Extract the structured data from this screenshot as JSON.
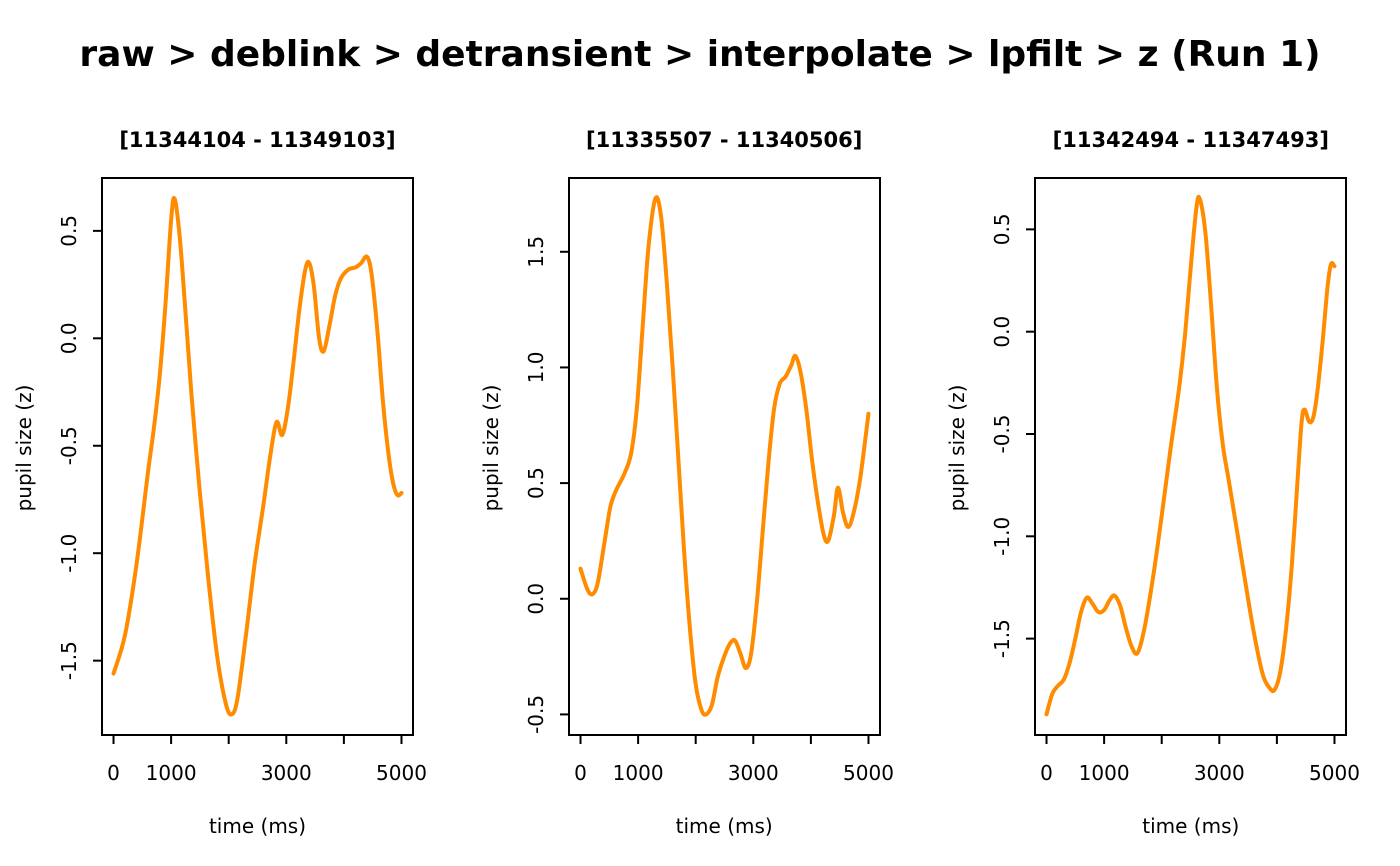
{
  "figure": {
    "title": "raw > deblink > detransient > interpolate > lpfilt > z (Run 1)",
    "background": "#ffffff"
  },
  "style": {
    "line_color": "#ff8c00",
    "axis_color": "#000000",
    "text_color": "#000000",
    "line_width": 4
  },
  "chart_data": [
    {
      "type": "line",
      "title": "[11344104 - 11349103]",
      "xlabel": "time (ms)",
      "ylabel": "pupil size (z)",
      "xlim": [
        -200,
        5200
      ],
      "ylim": [
        -1.846,
        0.746
      ],
      "xticks": [
        0,
        1000,
        2000,
        3000,
        4000,
        5000
      ],
      "xtick_labels": [
        "0",
        "1000",
        "",
        "3000",
        "",
        "5000"
      ],
      "yticks": [
        0.5,
        0.0,
        -0.5,
        -1.0,
        -1.5
      ],
      "ytick_labels": [
        "0.5",
        "0.0",
        "-0.5",
        "-1.0",
        "-1.5"
      ],
      "grid": false,
      "legend": null,
      "series": [
        {
          "name": "pupil size (z)",
          "points": [
            [
              0,
              -1.56
            ],
            [
              200,
              -1.38
            ],
            [
              400,
              -1.05
            ],
            [
              600,
              -0.62
            ],
            [
              700,
              -0.42
            ],
            [
              800,
              -0.18
            ],
            [
              900,
              0.15
            ],
            [
              1000,
              0.55
            ],
            [
              1060,
              0.65
            ],
            [
              1150,
              0.47
            ],
            [
              1250,
              0.12
            ],
            [
              1350,
              -0.25
            ],
            [
              1500,
              -0.72
            ],
            [
              1650,
              -1.13
            ],
            [
              1800,
              -1.48
            ],
            [
              1950,
              -1.7
            ],
            [
              2050,
              -1.75
            ],
            [
              2150,
              -1.68
            ],
            [
              2300,
              -1.38
            ],
            [
              2450,
              -1.05
            ],
            [
              2600,
              -0.78
            ],
            [
              2720,
              -0.55
            ],
            [
              2830,
              -0.39
            ],
            [
              2930,
              -0.45
            ],
            [
              3030,
              -0.32
            ],
            [
              3130,
              -0.1
            ],
            [
              3230,
              0.14
            ],
            [
              3330,
              0.32
            ],
            [
              3400,
              0.35
            ],
            [
              3480,
              0.24
            ],
            [
              3570,
              0.0
            ],
            [
              3650,
              -0.06
            ],
            [
              3750,
              0.06
            ],
            [
              3850,
              0.2
            ],
            [
              3950,
              0.28
            ],
            [
              4080,
              0.32
            ],
            [
              4200,
              0.33
            ],
            [
              4300,
              0.35
            ],
            [
              4400,
              0.38
            ],
            [
              4480,
              0.3
            ],
            [
              4580,
              0.04
            ],
            [
              4680,
              -0.3
            ],
            [
              4780,
              -0.55
            ],
            [
              4860,
              -0.68
            ],
            [
              4930,
              -0.73
            ],
            [
              5000,
              -0.72
            ]
          ]
        }
      ]
    },
    {
      "type": "line",
      "title": "[11335507 - 11340506]",
      "xlabel": "time (ms)",
      "ylabel": "pupil size (z)",
      "xlim": [
        -200,
        5200
      ],
      "ylim": [
        -0.589,
        1.819
      ],
      "xticks": [
        0,
        1000,
        2000,
        3000,
        4000,
        5000
      ],
      "xtick_labels": [
        "0",
        "1000",
        "",
        "3000",
        "",
        "5000"
      ],
      "yticks": [
        1.5,
        1.0,
        0.5,
        0.0,
        -0.5
      ],
      "ytick_labels": [
        "1.5",
        "1.0",
        "0.5",
        "0.0",
        "-0.5"
      ],
      "grid": false,
      "legend": null,
      "series": [
        {
          "name": "pupil size (z)",
          "points": [
            [
              0,
              0.13
            ],
            [
              120,
              0.04
            ],
            [
              210,
              0.02
            ],
            [
              300,
              0.07
            ],
            [
              420,
              0.25
            ],
            [
              520,
              0.4
            ],
            [
              620,
              0.47
            ],
            [
              760,
              0.54
            ],
            [
              880,
              0.63
            ],
            [
              980,
              0.83
            ],
            [
              1080,
              1.18
            ],
            [
              1180,
              1.52
            ],
            [
              1300,
              1.73
            ],
            [
              1400,
              1.65
            ],
            [
              1500,
              1.36
            ],
            [
              1600,
              1.0
            ],
            [
              1700,
              0.6
            ],
            [
              1800,
              0.2
            ],
            [
              1900,
              -0.13
            ],
            [
              2000,
              -0.37
            ],
            [
              2100,
              -0.48
            ],
            [
              2180,
              -0.5
            ],
            [
              2280,
              -0.46
            ],
            [
              2380,
              -0.34
            ],
            [
              2480,
              -0.26
            ],
            [
              2580,
              -0.2
            ],
            [
              2680,
              -0.18
            ],
            [
              2780,
              -0.24
            ],
            [
              2870,
              -0.3
            ],
            [
              2960,
              -0.24
            ],
            [
              3060,
              -0.02
            ],
            [
              3160,
              0.28
            ],
            [
              3260,
              0.58
            ],
            [
              3360,
              0.82
            ],
            [
              3460,
              0.93
            ],
            [
              3560,
              0.96
            ],
            [
              3660,
              1.01
            ],
            [
              3730,
              1.05
            ],
            [
              3820,
              0.98
            ],
            [
              3920,
              0.82
            ],
            [
              4020,
              0.6
            ],
            [
              4120,
              0.42
            ],
            [
              4220,
              0.28
            ],
            [
              4300,
              0.25
            ],
            [
              4400,
              0.36
            ],
            [
              4470,
              0.48
            ],
            [
              4560,
              0.37
            ],
            [
              4650,
              0.31
            ],
            [
              4750,
              0.38
            ],
            [
              4850,
              0.51
            ],
            [
              4930,
              0.66
            ],
            [
              5000,
              0.8
            ]
          ]
        }
      ]
    },
    {
      "type": "line",
      "title": "[11342494 - 11347493]",
      "xlabel": "time (ms)",
      "ylabel": "pupil size (z)",
      "xlim": [
        -200,
        5200
      ],
      "ylim": [
        -1.971,
        0.751
      ],
      "xticks": [
        0,
        1000,
        2000,
        3000,
        4000,
        5000
      ],
      "xtick_labels": [
        "0",
        "1000",
        "",
        "3000",
        "",
        "5000"
      ],
      "yticks": [
        0.5,
        0.0,
        -0.5,
        -1.0,
        -1.5
      ],
      "ytick_labels": [
        "0.5",
        "0.0",
        "-0.5",
        "-1.0",
        "-1.5"
      ],
      "grid": false,
      "legend": null,
      "series": [
        {
          "name": "pupil size (z)",
          "points": [
            [
              0,
              -1.87
            ],
            [
              100,
              -1.77
            ],
            [
              200,
              -1.73
            ],
            [
              300,
              -1.7
            ],
            [
              400,
              -1.62
            ],
            [
              500,
              -1.5
            ],
            [
              600,
              -1.37
            ],
            [
              700,
              -1.3
            ],
            [
              800,
              -1.33
            ],
            [
              900,
              -1.37
            ],
            [
              1000,
              -1.36
            ],
            [
              1100,
              -1.31
            ],
            [
              1180,
              -1.29
            ],
            [
              1280,
              -1.34
            ],
            [
              1380,
              -1.45
            ],
            [
              1480,
              -1.54
            ],
            [
              1580,
              -1.57
            ],
            [
              1700,
              -1.45
            ],
            [
              1850,
              -1.2
            ],
            [
              2000,
              -0.9
            ],
            [
              2150,
              -0.58
            ],
            [
              2300,
              -0.28
            ],
            [
              2400,
              -0.03
            ],
            [
              2500,
              0.3
            ],
            [
              2600,
              0.6
            ],
            [
              2660,
              0.65
            ],
            [
              2760,
              0.48
            ],
            [
              2860,
              0.12
            ],
            [
              2960,
              -0.28
            ],
            [
              3060,
              -0.55
            ],
            [
              3160,
              -0.72
            ],
            [
              3300,
              -0.96
            ],
            [
              3450,
              -1.22
            ],
            [
              3600,
              -1.47
            ],
            [
              3750,
              -1.67
            ],
            [
              3870,
              -1.74
            ],
            [
              3960,
              -1.75
            ],
            [
              4060,
              -1.66
            ],
            [
              4160,
              -1.45
            ],
            [
              4260,
              -1.14
            ],
            [
              4360,
              -0.72
            ],
            [
              4430,
              -0.44
            ],
            [
              4480,
              -0.38
            ],
            [
              4560,
              -0.44
            ],
            [
              4630,
              -0.42
            ],
            [
              4700,
              -0.3
            ],
            [
              4790,
              -0.06
            ],
            [
              4880,
              0.22
            ],
            [
              4940,
              0.33
            ],
            [
              5000,
              0.32
            ]
          ]
        }
      ]
    }
  ]
}
